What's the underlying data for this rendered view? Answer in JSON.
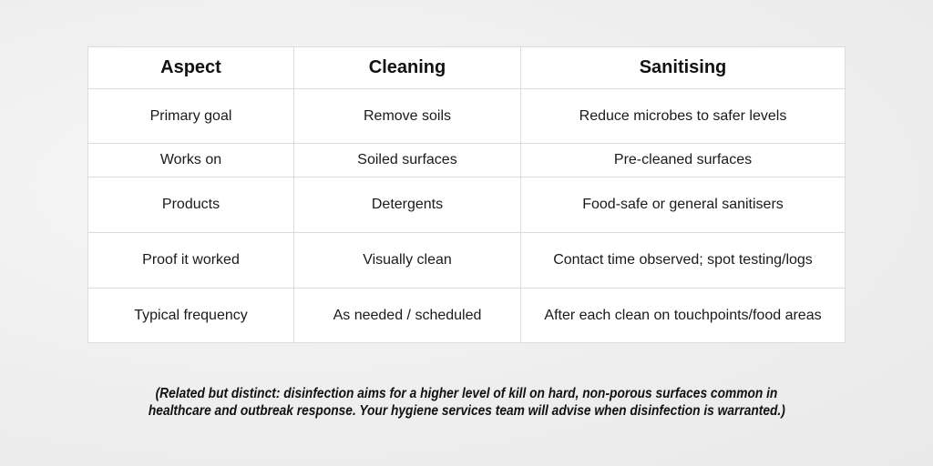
{
  "table": {
    "headers": [
      "Aspect",
      "Cleaning",
      "Sanitising"
    ],
    "rows": [
      [
        "Primary goal",
        "Remove soils",
        "Reduce microbes to safer levels"
      ],
      [
        "Works on",
        "Soiled surfaces",
        "Pre-cleaned surfaces"
      ],
      [
        "Products",
        "Detergents",
        "Food-safe or general sanitisers"
      ],
      [
        "Proof it worked",
        "Visually clean",
        "Contact time observed; spot testing/logs"
      ],
      [
        "Typical frequency",
        "As needed / scheduled",
        "After each clean on touchpoints/food areas"
      ]
    ]
  },
  "caption": {
    "line1": "(Related but distinct: disinfection aims for a higher level of kill on hard, non-porous surfaces common in",
    "line2": "healthcare and outbreak response. Your hygiene services team will advise when disinfection is warranted.)"
  }
}
